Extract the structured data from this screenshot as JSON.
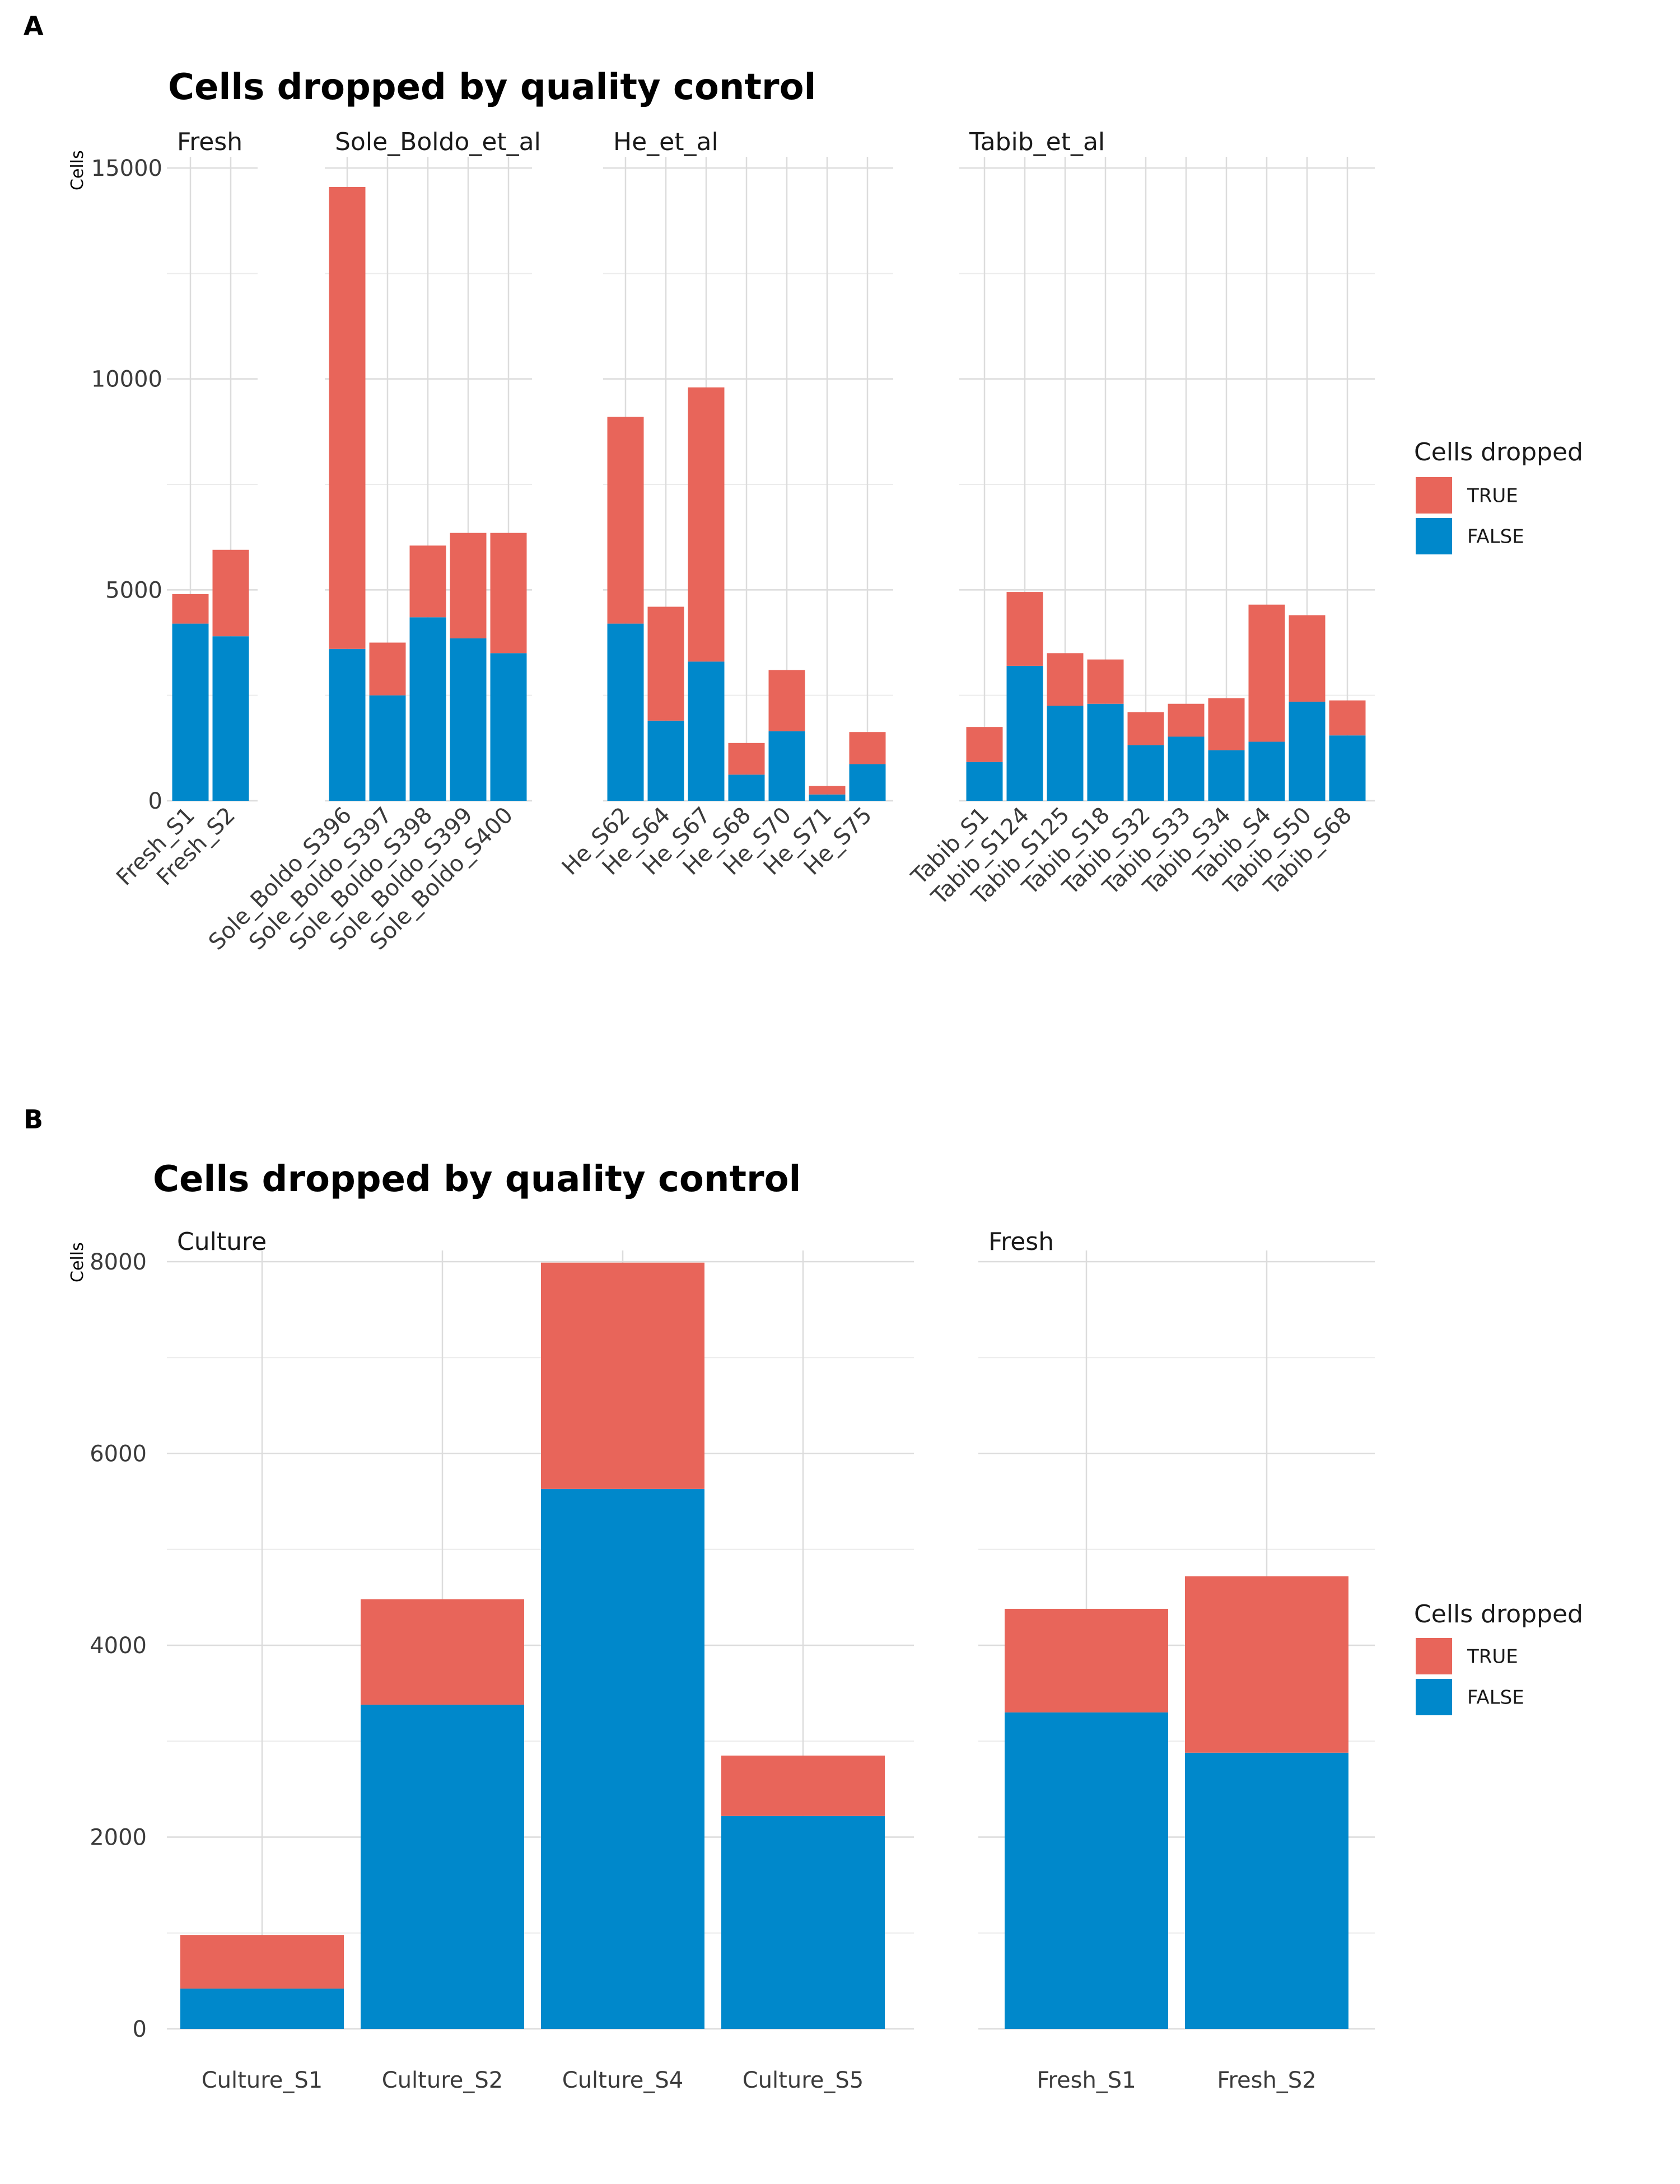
{
  "colors": {
    "true": "#E8655A",
    "false": "#0088CB"
  },
  "chart_data": [
    {
      "panel_letter": "A",
      "type": "bar",
      "stacked": true,
      "title": "Cells dropped by quality control",
      "ylabel": "Cells",
      "xlabel": "",
      "ylim": [
        0,
        15000
      ],
      "yticks": [
        0,
        5000,
        10000,
        15000
      ],
      "grid": true,
      "legend": {
        "title": "Cells dropped",
        "entries": [
          "TRUE",
          "FALSE"
        ],
        "position": "right"
      },
      "facets": [
        {
          "name": "Fresh",
          "categories": [
            "Fresh_S1",
            "Fresh_S2"
          ],
          "series": [
            {
              "name": "FALSE",
              "values": [
                4200,
                3900
              ]
            },
            {
              "name": "TRUE",
              "values": [
                700,
                2050
              ]
            }
          ]
        },
        {
          "name": "Sole_Boldo_et_al",
          "categories": [
            "Sole_Boldo_S396",
            "Sole_Boldo_S397",
            "Sole_Boldo_S398",
            "Sole_Boldo_S399",
            "Sole_Boldo_S400"
          ],
          "series": [
            {
              "name": "FALSE",
              "values": [
                3600,
                2500,
                4350,
                3850,
                3500
              ]
            },
            {
              "name": "TRUE",
              "values": [
                10950,
                1250,
                1700,
                2500,
                2850
              ]
            }
          ]
        },
        {
          "name": "He_et_al",
          "categories": [
            "He_S62",
            "He_S64",
            "He_S67",
            "He_S68",
            "He_S70",
            "He_S71",
            "He_S75"
          ],
          "series": [
            {
              "name": "FALSE",
              "values": [
                4200,
                1900,
                3300,
                620,
                1650,
                150,
                870
              ]
            },
            {
              "name": "TRUE",
              "values": [
                4900,
                2700,
                6500,
                750,
                1450,
                200,
                760
              ]
            }
          ]
        },
        {
          "name": "Tabib_et_al",
          "categories": [
            "Tabib_S1",
            "Tabib_S124",
            "Tabib_S125",
            "Tabib_S18",
            "Tabib_S32",
            "Tabib_S33",
            "Tabib_S34",
            "Tabib_S4",
            "Tabib_S50",
            "Tabib_S68"
          ],
          "series": [
            {
              "name": "FALSE",
              "values": [
                920,
                3200,
                2250,
                2300,
                1320,
                1520,
                1200,
                1400,
                2350,
                1550
              ]
            },
            {
              "name": "TRUE",
              "values": [
                830,
                1750,
                1250,
                1050,
                780,
                780,
                1230,
                3250,
                2050,
                830
              ]
            }
          ]
        }
      ]
    },
    {
      "panel_letter": "B",
      "type": "bar",
      "stacked": true,
      "title": "Cells dropped by quality control",
      "ylabel": "Cells",
      "xlabel": "",
      "ylim": [
        0,
        8000
      ],
      "yticks": [
        0,
        2000,
        4000,
        6000,
        8000
      ],
      "grid": true,
      "legend": {
        "title": "Cells dropped",
        "entries": [
          "TRUE",
          "FALSE"
        ],
        "position": "right"
      },
      "facets": [
        {
          "name": "Culture",
          "categories": [
            "Culture_S1",
            "Culture_S2",
            "Culture_S4",
            "Culture_S5"
          ],
          "series": [
            {
              "name": "FALSE",
              "values": [
                420,
                3380,
                5630,
                2220
              ]
            },
            {
              "name": "TRUE",
              "values": [
                560,
                1100,
                2360,
                630
              ]
            }
          ]
        },
        {
          "name": "Fresh",
          "categories": [
            "Fresh_S1",
            "Fresh_S2"
          ],
          "series": [
            {
              "name": "FALSE",
              "values": [
                3300,
                2880
              ]
            },
            {
              "name": "TRUE",
              "values": [
                1080,
                1840
              ]
            }
          ]
        }
      ]
    }
  ]
}
